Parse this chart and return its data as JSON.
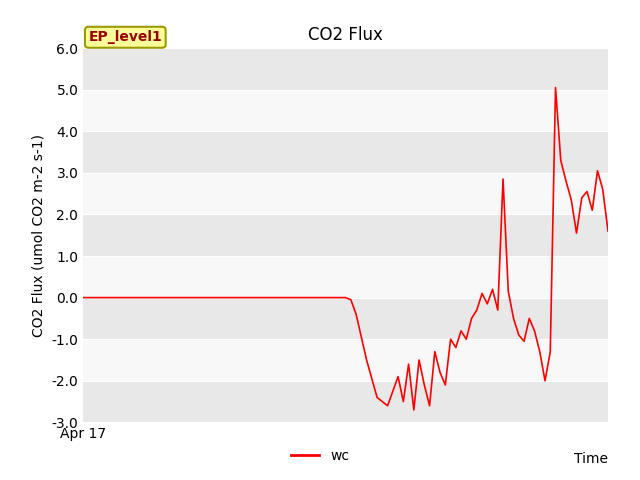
{
  "title": "CO2 Flux",
  "ylabel": "CO2 Flux (umol CO2 m-2 s-1)",
  "xlabel": "Time",
  "xlim_label": "Apr 17",
  "ylim": [
    -3.0,
    6.0
  ],
  "yticks": [
    -3.0,
    -2.0,
    -1.0,
    0.0,
    1.0,
    2.0,
    3.0,
    4.0,
    5.0,
    6.0
  ],
  "line_color": "#ff0000",
  "line_label": "wc",
  "ep_label": "EP_level1",
  "plot_bg_color": "#f0f0f0",
  "fig_bg_color": "#ffffff",
  "band_color_dark": "#e8e8e8",
  "band_color_light": "#f8f8f8",
  "x": [
    0,
    5,
    10,
    15,
    20,
    25,
    30,
    35,
    40,
    45,
    49,
    50,
    51,
    52,
    54,
    56,
    58,
    60,
    61,
    62,
    63,
    64,
    65,
    66,
    67,
    68,
    69,
    70,
    71,
    72,
    73,
    74,
    75,
    76,
    77,
    78,
    79,
    80,
    81,
    82,
    83,
    84,
    85,
    86,
    87,
    88,
    89,
    90,
    91,
    92,
    93,
    94,
    95,
    96,
    97,
    98,
    99,
    100
  ],
  "y": [
    0.0,
    0.0,
    0.0,
    0.0,
    0.0,
    0.0,
    0.0,
    0.0,
    0.0,
    0.0,
    0.0,
    0.0,
    -0.05,
    -0.4,
    -1.5,
    -2.4,
    -2.6,
    -1.9,
    -2.5,
    -1.6,
    -2.7,
    -1.5,
    -2.1,
    -2.6,
    -1.3,
    -1.8,
    -2.1,
    -1.0,
    -1.2,
    -0.8,
    -1.0,
    -0.5,
    -0.3,
    0.1,
    -0.15,
    0.2,
    -0.3,
    2.85,
    0.15,
    -0.5,
    -0.9,
    -1.05,
    -0.5,
    -0.8,
    -1.3,
    -2.0,
    -1.3,
    5.05,
    3.3,
    2.8,
    2.35,
    1.55,
    2.4,
    2.55,
    2.1,
    3.05,
    2.6,
    1.6
  ],
  "title_fontsize": 12,
  "label_fontsize": 10,
  "tick_fontsize": 10,
  "legend_fontsize": 10,
  "ep_box_facecolor": "#ffff99",
  "ep_box_edgecolor": "#999900",
  "ep_text_color": "#990000"
}
